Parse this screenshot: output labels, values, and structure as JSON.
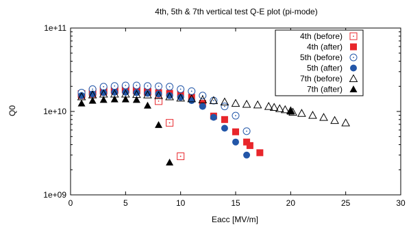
{
  "chart_data": {
    "type": "scatter",
    "title": "4th, 5th & 7th vertical test Q-E plot (pi-mode)",
    "xlabel": "Eacc [MV/m]",
    "ylabel": "Q0",
    "xlim": [
      0,
      30
    ],
    "ylim": [
      1000000000.0,
      100000000000.0
    ],
    "yscale": "log",
    "x_ticks": [
      0,
      5,
      10,
      15,
      20,
      25,
      30
    ],
    "x_tick_labels": [
      "0",
      "5",
      "10",
      "15",
      "20",
      "25",
      "30"
    ],
    "y_ticks": [
      1000000000.0,
      10000000000.0,
      100000000000.0
    ],
    "y_tick_labels": [
      "1e+09",
      "1e+10",
      "1e+11"
    ],
    "grid": false,
    "legend_position": "top-right",
    "series": [
      {
        "name": "4th (before)",
        "color": "#e8262b",
        "marker": "square-dot-open",
        "points": [
          [
            1,
            16200000000.0
          ],
          [
            2,
            17200000000.0
          ],
          [
            3,
            17800000000.0
          ],
          [
            4,
            18200000000.0
          ],
          [
            5,
            18500000000.0
          ],
          [
            6,
            18000000000.0
          ],
          [
            7,
            17200000000.0
          ],
          [
            8,
            13300000000.0
          ],
          [
            9,
            7300000000.0
          ],
          [
            10,
            2900000000.0
          ]
        ]
      },
      {
        "name": "4th (after)",
        "color": "#e8262b",
        "marker": "square-filled",
        "points": [
          [
            1,
            15500000000.0
          ],
          [
            2,
            16200000000.0
          ],
          [
            3,
            17000000000.0
          ],
          [
            4,
            17500000000.0
          ],
          [
            5,
            17800000000.0
          ],
          [
            6,
            17500000000.0
          ],
          [
            7,
            17200000000.0
          ],
          [
            8,
            16800000000.0
          ],
          [
            9,
            16500000000.0
          ],
          [
            10,
            16200000000.0
          ],
          [
            11,
            14800000000.0
          ],
          [
            12,
            12500000000.0
          ],
          [
            13,
            8800000000.0
          ],
          [
            14,
            8000000000.0
          ],
          [
            15,
            5700000000.0
          ],
          [
            16,
            4300000000.0
          ],
          [
            16.3,
            3900000000.0
          ],
          [
            17.2,
            3200000000.0
          ]
        ]
      },
      {
        "name": "5th (before)",
        "color": "#2256a8",
        "marker": "circle-dot-open",
        "points": [
          [
            1,
            16800000000.0
          ],
          [
            2,
            18500000000.0
          ],
          [
            3,
            19800000000.0
          ],
          [
            4,
            20200000000.0
          ],
          [
            5,
            20500000000.0
          ],
          [
            6,
            20500000000.0
          ],
          [
            7,
            20200000000.0
          ],
          [
            8,
            20000000000.0
          ],
          [
            9,
            19800000000.0
          ],
          [
            10,
            18500000000.0
          ],
          [
            11,
            17500000000.0
          ],
          [
            12,
            15500000000.0
          ],
          [
            13,
            13500000000.0
          ],
          [
            14,
            11500000000.0
          ],
          [
            15,
            8900000000.0
          ],
          [
            16,
            5800000000.0
          ]
        ]
      },
      {
        "name": "5th (after)",
        "color": "#2256a8",
        "marker": "circle-filled",
        "points": [
          [
            1,
            15500000000.0
          ],
          [
            2,
            16200000000.0
          ],
          [
            3,
            16800000000.0
          ],
          [
            4,
            17000000000.0
          ],
          [
            5,
            17000000000.0
          ],
          [
            6,
            16800000000.0
          ],
          [
            7,
            16500000000.0
          ],
          [
            8,
            16200000000.0
          ],
          [
            9,
            15500000000.0
          ],
          [
            10,
            14800000000.0
          ],
          [
            11,
            13500000000.0
          ],
          [
            12,
            11500000000.0
          ],
          [
            13,
            8500000000.0
          ],
          [
            14,
            6300000000.0
          ],
          [
            15,
            4300000000.0
          ],
          [
            16,
            3000000000.0
          ]
        ]
      },
      {
        "name": "7th (before)",
        "color": "#000000",
        "marker": "triangle-open",
        "points": [
          [
            1,
            15000000000.0
          ],
          [
            2,
            15800000000.0
          ],
          [
            3,
            16200000000.0
          ],
          [
            4,
            16200000000.0
          ],
          [
            5,
            16200000000.0
          ],
          [
            6,
            16000000000.0
          ],
          [
            7,
            15800000000.0
          ],
          [
            8,
            15500000000.0
          ],
          [
            9,
            15000000000.0
          ],
          [
            10,
            14500000000.0
          ],
          [
            11,
            14200000000.0
          ],
          [
            12,
            13800000000.0
          ],
          [
            13,
            13500000000.0
          ],
          [
            14,
            13000000000.0
          ],
          [
            15,
            12500000000.0
          ],
          [
            16,
            12200000000.0
          ],
          [
            17,
            12000000000.0
          ],
          [
            18,
            11500000000.0
          ],
          [
            18.5,
            11200000000.0
          ],
          [
            19,
            10800000000.0
          ],
          [
            19.5,
            10500000000.0
          ],
          [
            20,
            10200000000.0
          ],
          [
            20.2,
            9800000000.0
          ],
          [
            21,
            9500000000.0
          ],
          [
            22,
            9000000000.0
          ],
          [
            23,
            8500000000.0
          ],
          [
            24,
            7800000000.0
          ],
          [
            25,
            7300000000.0
          ]
        ]
      },
      {
        "name": "7th (after)",
        "color": "#000000",
        "marker": "triangle-filled",
        "points": [
          [
            1,
            12500000000.0
          ],
          [
            2,
            13500000000.0
          ],
          [
            3,
            13800000000.0
          ],
          [
            4,
            14000000000.0
          ],
          [
            5,
            14000000000.0
          ],
          [
            6,
            13800000000.0
          ],
          [
            7,
            11800000000.0
          ],
          [
            8,
            6900000000.0
          ],
          [
            9,
            2450000000.0
          ],
          [
            20,
            10000000000.0
          ]
        ]
      }
    ]
  }
}
